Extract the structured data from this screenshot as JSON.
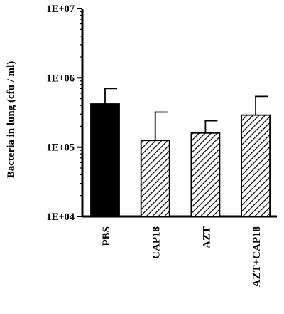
{
  "chart_data": {
    "type": "bar",
    "title": "",
    "xlabel": "",
    "ylabel": "Bacteria in lung (cfu / ml)",
    "yscale": "log",
    "ylim": [
      10000,
      10000000
    ],
    "yticks": [
      "1E+04",
      "1E+05",
      "1E+06",
      "1E+07"
    ],
    "ytick_values": [
      10000,
      100000,
      1000000,
      10000000
    ],
    "categories": [
      "PBS",
      "CAP18",
      "AZT",
      "AZT+CAP18"
    ],
    "values": [
      420000,
      125000,
      160000,
      290000
    ],
    "error_upper": [
      700000,
      320000,
      240000,
      540000
    ],
    "bar_styles": [
      "solid-black",
      "diagonal-hatch",
      "diagonal-hatch",
      "diagonal-hatch"
    ],
    "grid": false,
    "legend": "none",
    "colors": {
      "axis": "#000000",
      "bar_fill": "#000000",
      "hatch": "#000000",
      "background": "#ffffff"
    }
  }
}
